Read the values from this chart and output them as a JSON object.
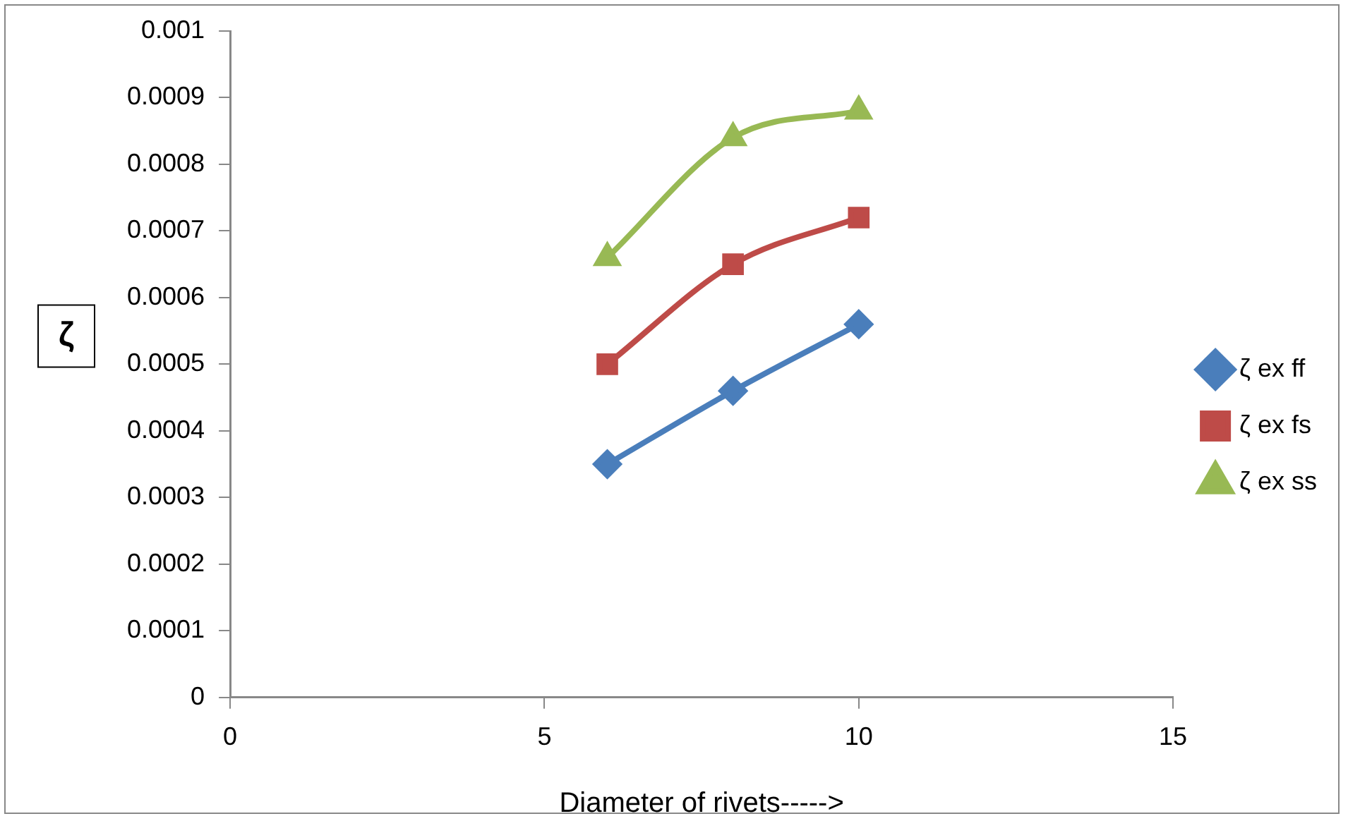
{
  "chart_data": {
    "type": "line",
    "xlabel": "Diameter of rivets----->",
    "ylabel": "ζ",
    "x": [
      6,
      8,
      10
    ],
    "series": [
      {
        "name": "ζ ex ff",
        "color": "#4a7ebb",
        "marker": "diamond",
        "values": [
          0.00035,
          0.00046,
          0.00056
        ]
      },
      {
        "name": "ζ ex fs",
        "color": "#be4b48",
        "marker": "square",
        "values": [
          0.0005,
          0.00065,
          0.00072
        ]
      },
      {
        "name": "ζ ex ss",
        "color": "#98b954",
        "marker": "triangle",
        "values": [
          0.00066,
          0.00084,
          0.00088
        ]
      }
    ],
    "xlim": [
      0,
      15
    ],
    "xticks": [
      0,
      5,
      10,
      15
    ],
    "ylim": [
      0,
      0.001
    ],
    "yticks": [
      0,
      0.0001,
      0.0002,
      0.0003,
      0.0004,
      0.0005,
      0.0006,
      0.0007,
      0.0008,
      0.0009,
      0.001
    ],
    "grid": false,
    "legend": "right"
  }
}
